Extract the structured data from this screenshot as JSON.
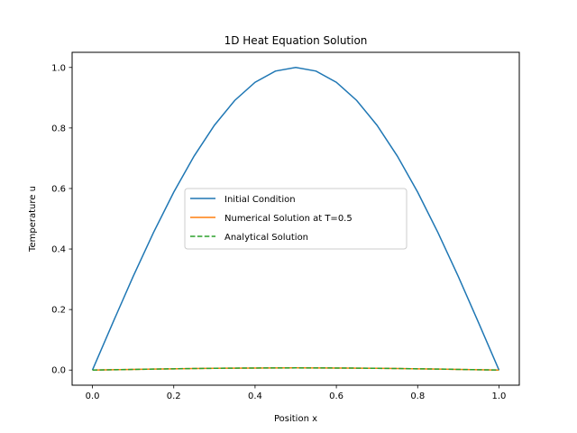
{
  "chart_data": {
    "type": "line",
    "title": "1D Heat Equation Solution",
    "xlabel": "Position x",
    "ylabel": "Temperature u",
    "xlim": [
      -0.05,
      1.05
    ],
    "ylim": [
      -0.05,
      1.05
    ],
    "xticks": [
      0.0,
      0.2,
      0.4,
      0.6,
      0.8,
      1.0
    ],
    "xtick_labels": [
      "0.0",
      "0.2",
      "0.4",
      "0.6",
      "0.8",
      "1.0"
    ],
    "yticks": [
      0.0,
      0.2,
      0.4,
      0.6,
      0.8,
      1.0
    ],
    "ytick_labels": [
      "0.0",
      "0.2",
      "0.4",
      "0.6",
      "0.8",
      "1.0"
    ],
    "grid": false,
    "legend_position": "center",
    "x": [
      0.0,
      0.05,
      0.1,
      0.15,
      0.2,
      0.25,
      0.3,
      0.35,
      0.4,
      0.45,
      0.5,
      0.55,
      0.6,
      0.65,
      0.7,
      0.75,
      0.8,
      0.85,
      0.9,
      0.95,
      1.0
    ],
    "series": [
      {
        "name": "Initial Condition",
        "color": "#1f77b4",
        "style": "solid",
        "values": [
          0.0,
          0.156,
          0.309,
          0.454,
          0.588,
          0.707,
          0.809,
          0.891,
          0.951,
          0.988,
          1.0,
          0.988,
          0.951,
          0.891,
          0.809,
          0.707,
          0.588,
          0.454,
          0.309,
          0.156,
          0.0
        ]
      },
      {
        "name": "Numerical Solution at T=0.5",
        "color": "#ff7f0e",
        "style": "solid",
        "values": [
          0.0,
          0.0011,
          0.0022,
          0.0033,
          0.0042,
          0.0051,
          0.0058,
          0.0064,
          0.0068,
          0.0071,
          0.0072,
          0.0071,
          0.0068,
          0.0064,
          0.0058,
          0.0051,
          0.0042,
          0.0033,
          0.0022,
          0.0011,
          0.0
        ]
      },
      {
        "name": "Analytical Solution",
        "color": "#2ca02c",
        "style": "dashed",
        "values": [
          0.0,
          0.0011,
          0.0022,
          0.0033,
          0.0042,
          0.0051,
          0.0058,
          0.0064,
          0.0068,
          0.0071,
          0.0072,
          0.0071,
          0.0068,
          0.0064,
          0.0058,
          0.0051,
          0.0042,
          0.0033,
          0.0022,
          0.0011,
          0.0
        ]
      }
    ]
  }
}
